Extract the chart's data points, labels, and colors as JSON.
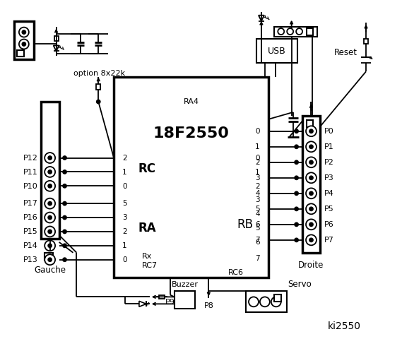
{
  "bg_color": "#ffffff",
  "title": "ki2550",
  "chip_label": "18F2550",
  "chip_sub": "RA4",
  "chip_rc": "RC",
  "chip_ra": "RA",
  "chip_rb": "RB",
  "chip_rx": "Rx",
  "chip_rc7": "RC7",
  "chip_rc6": "RC6",
  "left_labels": [
    "P12",
    "P11",
    "P10",
    "P17",
    "P16",
    "P15",
    "P14",
    "P13"
  ],
  "left_pins": [
    "2",
    "1",
    "0",
    "5",
    "3",
    "2",
    "1",
    "0"
  ],
  "right_labels": [
    "P0",
    "P1",
    "P2",
    "P3",
    "P4",
    "P5",
    "P6",
    "P7"
  ],
  "right_pins": [
    "0",
    "1",
    "2",
    "3",
    "4",
    "5",
    "6",
    "7"
  ],
  "option_text": "option 8x22k",
  "reset_text": "Reset",
  "usb_text": "USB",
  "gauche_text": "Gauche",
  "droite_text": "Droite",
  "buzzer_text": "Buzzer",
  "servo_text": "Servo",
  "p8_text": "P8",
  "p9_text": "P9"
}
